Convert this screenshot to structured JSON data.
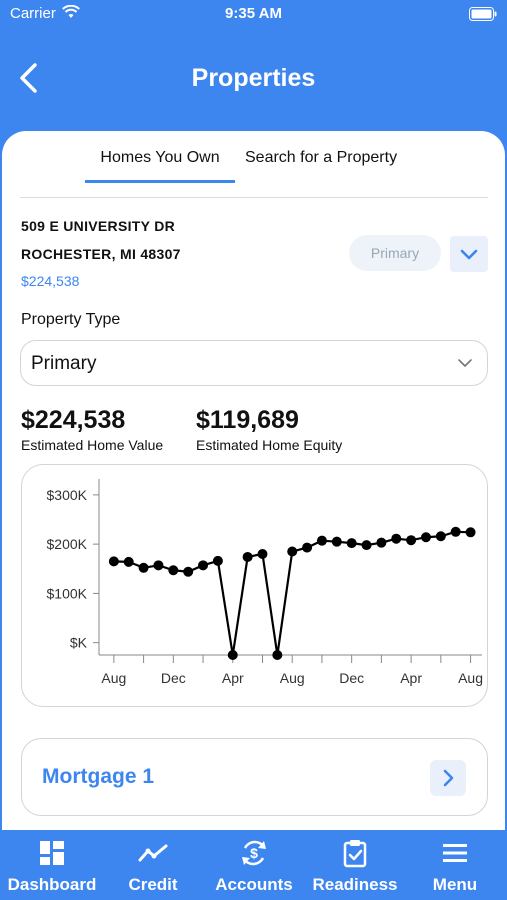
{
  "status": {
    "carrier": "Carrier",
    "time": "9:35 AM"
  },
  "nav": {
    "title": "Properties"
  },
  "tabs": {
    "homes": "Homes You Own",
    "search": "Search for a Property"
  },
  "property": {
    "street": "509 E UNIVERSITY DR",
    "city": "ROCHESTER, MI 48307",
    "price": "$224,538",
    "badge": "Primary"
  },
  "property_type": {
    "label": "Property Type",
    "selected": "Primary"
  },
  "stats": {
    "home_value": "$224,538",
    "home_value_label": "Estimated Home Value",
    "equity": "$119,689",
    "equity_label": "Estimated Home Equity"
  },
  "chart_data": {
    "type": "line",
    "y_ticks": [
      "$300K",
      "$200K",
      "$100K",
      "$K"
    ],
    "y_tick_values": [
      300,
      200,
      100,
      0
    ],
    "x_ticks": [
      "Aug",
      "Dec",
      "Apr",
      "Aug",
      "Dec",
      "Apr",
      "Aug"
    ],
    "x_tick_positions": [
      0,
      4,
      8,
      12,
      16,
      20,
      24
    ],
    "ylim": [
      -25,
      320
    ],
    "xlim": [
      -1,
      24.5
    ],
    "series": [
      {
        "x": [
          0,
          1,
          2,
          3,
          4,
          5,
          6,
          7,
          8,
          9,
          10,
          11,
          12,
          13,
          14,
          15,
          16,
          17,
          18,
          19,
          20,
          21,
          22,
          23,
          24
        ],
        "values": [
          165,
          164,
          152,
          157,
          147,
          144,
          157,
          166,
          -25,
          174,
          180,
          -25,
          185,
          193,
          207,
          205,
          202,
          198,
          203,
          211,
          208,
          214,
          216,
          225,
          224
        ]
      }
    ],
    "line_color": "#000000",
    "grid": false
  },
  "mortgage": {
    "label": "Mortgage 1"
  },
  "tabbar": {
    "dashboard": "Dashboard",
    "credit": "Credit",
    "accounts": "Accounts",
    "readiness": "Readiness",
    "menu": "Menu"
  },
  "colors": {
    "brand": "#3d86f0",
    "pill_bg": "#eef3f9"
  }
}
